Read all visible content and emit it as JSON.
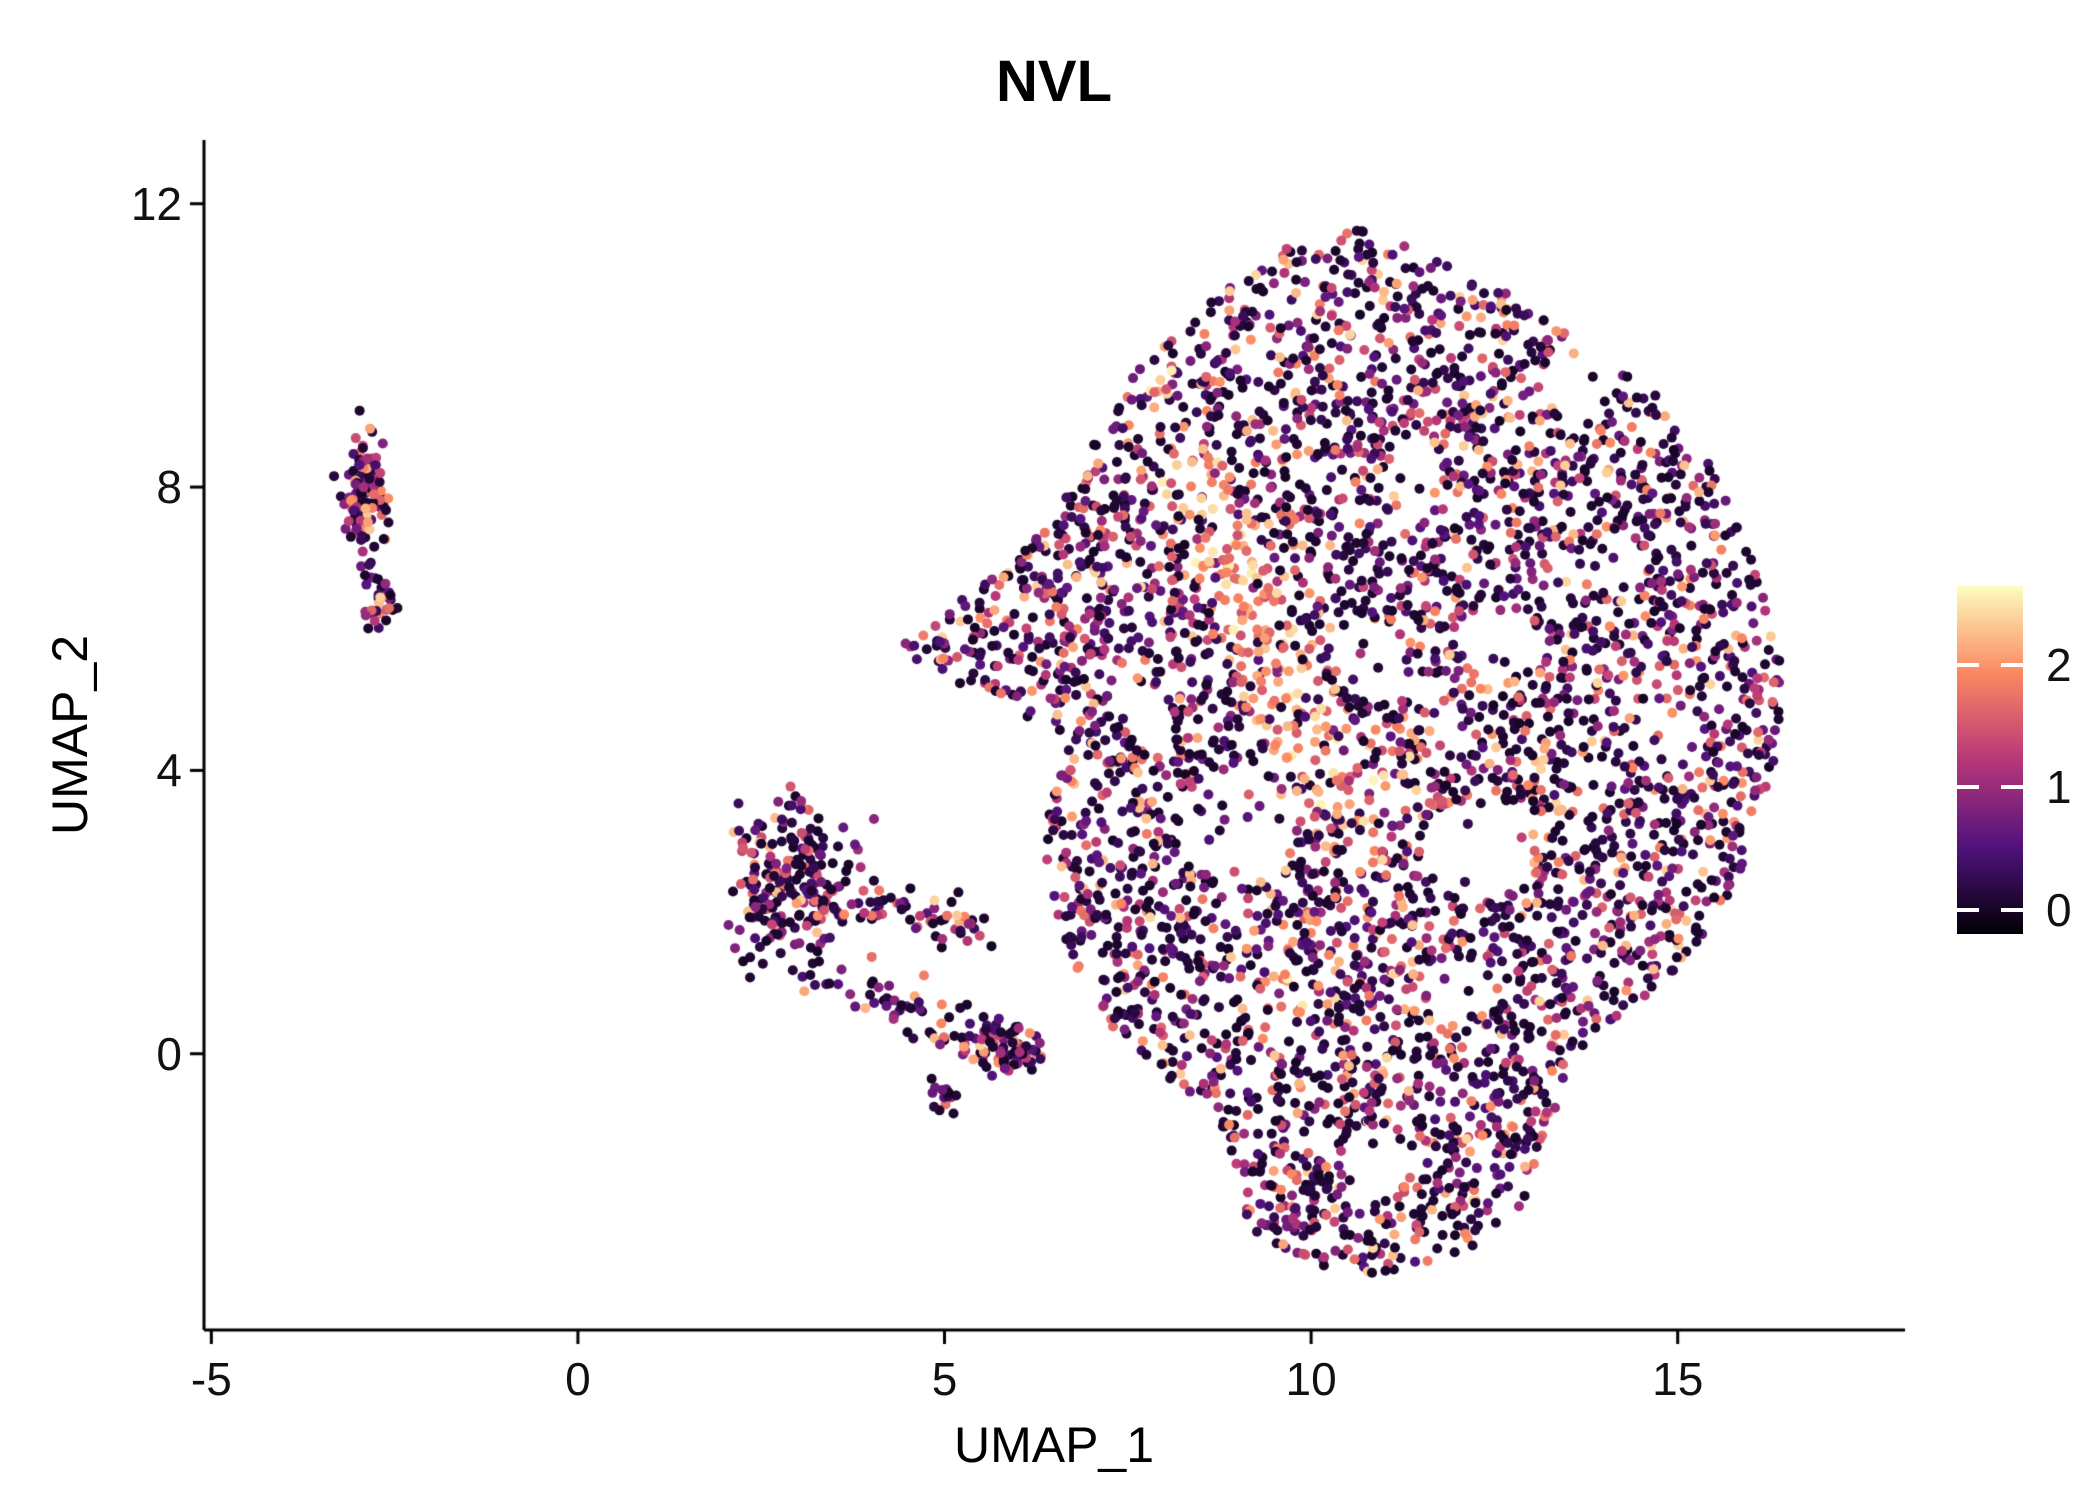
{
  "chart_data": {
    "type": "scatter",
    "title": "NVL",
    "xlabel": "UMAP_1",
    "ylabel": "UMAP_2",
    "xlim": [
      -5.1,
      18.1
    ],
    "ylim": [
      -3.9,
      12.9
    ],
    "xticks": [
      -5,
      0,
      5,
      10,
      15
    ],
    "yticks": [
      0,
      4,
      8,
      12
    ],
    "grid": false,
    "legend_position": "right",
    "point_radius_px": 5,
    "seed": 42,
    "colorbar": {
      "ticks": [
        0,
        1,
        2
      ],
      "vmin": -0.2,
      "vmax": 2.65,
      "colormap": "magma",
      "stops": [
        [
          0,
          "#000004"
        ],
        [
          0.25,
          "#51127c"
        ],
        [
          0.5,
          "#b73779"
        ],
        [
          0.75,
          "#fb8861"
        ],
        [
          1,
          "#fcfdbf"
        ]
      ]
    },
    "expression": {
      "zero_prob": 0.3,
      "pow": 1.7,
      "span": 2.3,
      "base": 0.12,
      "hot_min": 1.45,
      "hot_span": 1.15,
      "max": 2.6
    },
    "clusters": [
      {
        "name": "left-strip-upper",
        "type": "gaussian",
        "count": 120,
        "cx": -2.9,
        "cy": 7.9,
        "sx": 0.13,
        "sy": 0.45
      },
      {
        "name": "left-strip-lower",
        "type": "gaussian",
        "count": 35,
        "cx": -2.75,
        "cy": 6.4,
        "sx": 0.1,
        "sy": 0.18
      },
      {
        "name": "mid-cluster-main",
        "type": "gaussian",
        "count": 240,
        "cx": 2.9,
        "cy": 2.35,
        "sx": 0.42,
        "sy": 0.58
      },
      {
        "name": "mid-cluster-tail-right",
        "type": "line",
        "count": 55,
        "x1": 3.8,
        "y1": 2.1,
        "x2": 5.6,
        "y2": 1.8,
        "jitter": 0.18
      },
      {
        "name": "mid-cluster-tail-down",
        "type": "line",
        "count": 45,
        "x1": 3.4,
        "y1": 1.15,
        "x2": 5.2,
        "y2": 0.35,
        "jitter": 0.2
      },
      {
        "name": "small-blob",
        "type": "gaussian",
        "count": 85,
        "cx": 5.8,
        "cy": 0.08,
        "sx": 0.28,
        "sy": 0.2
      },
      {
        "name": "small-spur",
        "type": "gaussian",
        "count": 14,
        "cx": 4.95,
        "cy": -0.6,
        "sx": 0.12,
        "sy": 0.14
      },
      {
        "name": "main-blob",
        "type": "polygon",
        "count": 4400,
        "vertices": [
          [
            4.35,
            5.7
          ],
          [
            6.2,
            7.2
          ],
          [
            6.9,
            8.4
          ],
          [
            7.6,
            9.6
          ],
          [
            8.6,
            10.6
          ],
          [
            9.7,
            11.4
          ],
          [
            10.6,
            11.65
          ],
          [
            11.6,
            11.3
          ],
          [
            12.6,
            10.8
          ],
          [
            13.6,
            10.1
          ],
          [
            14.7,
            9.3
          ],
          [
            15.6,
            8.1
          ],
          [
            16.2,
            6.6
          ],
          [
            16.45,
            5.2
          ],
          [
            16.3,
            3.8
          ],
          [
            15.8,
            2.4
          ],
          [
            15.1,
            1.3
          ],
          [
            14.2,
            0.5
          ],
          [
            13.5,
            -0.1
          ],
          [
            13.3,
            -1.0
          ],
          [
            12.9,
            -2.1
          ],
          [
            12.1,
            -2.8
          ],
          [
            11.0,
            -3.15
          ],
          [
            9.9,
            -3.0
          ],
          [
            9.2,
            -2.5
          ],
          [
            8.85,
            -1.7
          ],
          [
            8.7,
            -0.75
          ],
          [
            8.0,
            -0.35
          ],
          [
            7.3,
            0.3
          ],
          [
            6.8,
            1.1
          ],
          [
            6.5,
            2.0
          ],
          [
            6.35,
            3.0
          ],
          [
            6.5,
            3.9
          ],
          [
            6.55,
            4.5
          ]
        ],
        "voids": [
          [
            9.0,
            3.2,
            0.8
          ],
          [
            12.3,
            2.9,
            0.75
          ],
          [
            10.8,
            5.6,
            0.5
          ],
          [
            12.6,
            5.8,
            0.5
          ],
          [
            13.7,
            9.5,
            0.55
          ],
          [
            11.4,
            8.3,
            0.4
          ],
          [
            14.9,
            4.4,
            0.5
          ],
          [
            7.6,
            4.9,
            0.35
          ],
          [
            10.9,
            -1.5,
            0.5
          ],
          [
            9.3,
            9.9,
            0.35
          ],
          [
            14.2,
            6.9,
            0.4
          ],
          [
            12.0,
            0.9,
            0.4
          ]
        ],
        "void_keep_prob": 0.12,
        "hotspots": [
          {
            "type": "line",
            "x1": 8.4,
            "y1": 8.1,
            "x2": 9.9,
            "y2": 4.4,
            "width": 0.5,
            "prob": 0.7
          },
          {
            "type": "line",
            "x1": 9.9,
            "y1": 4.4,
            "x2": 10.7,
            "y2": 2.8,
            "width": 0.45,
            "prob": 0.4
          },
          {
            "type": "circle",
            "cx": 10.9,
            "cy": 4.1,
            "r": 0.7,
            "prob": 0.35
          },
          {
            "type": "circle",
            "cx": 9.7,
            "cy": 0.7,
            "r": 0.5,
            "prob": 0.3
          },
          {
            "type": "circle",
            "cx": 7.8,
            "cy": 9.8,
            "r": 0.45,
            "prob": 0.3
          },
          {
            "type": "circle",
            "cx": 15.4,
            "cy": 9.3,
            "r": 0.3,
            "prob": 0.4
          }
        ]
      }
    ]
  }
}
